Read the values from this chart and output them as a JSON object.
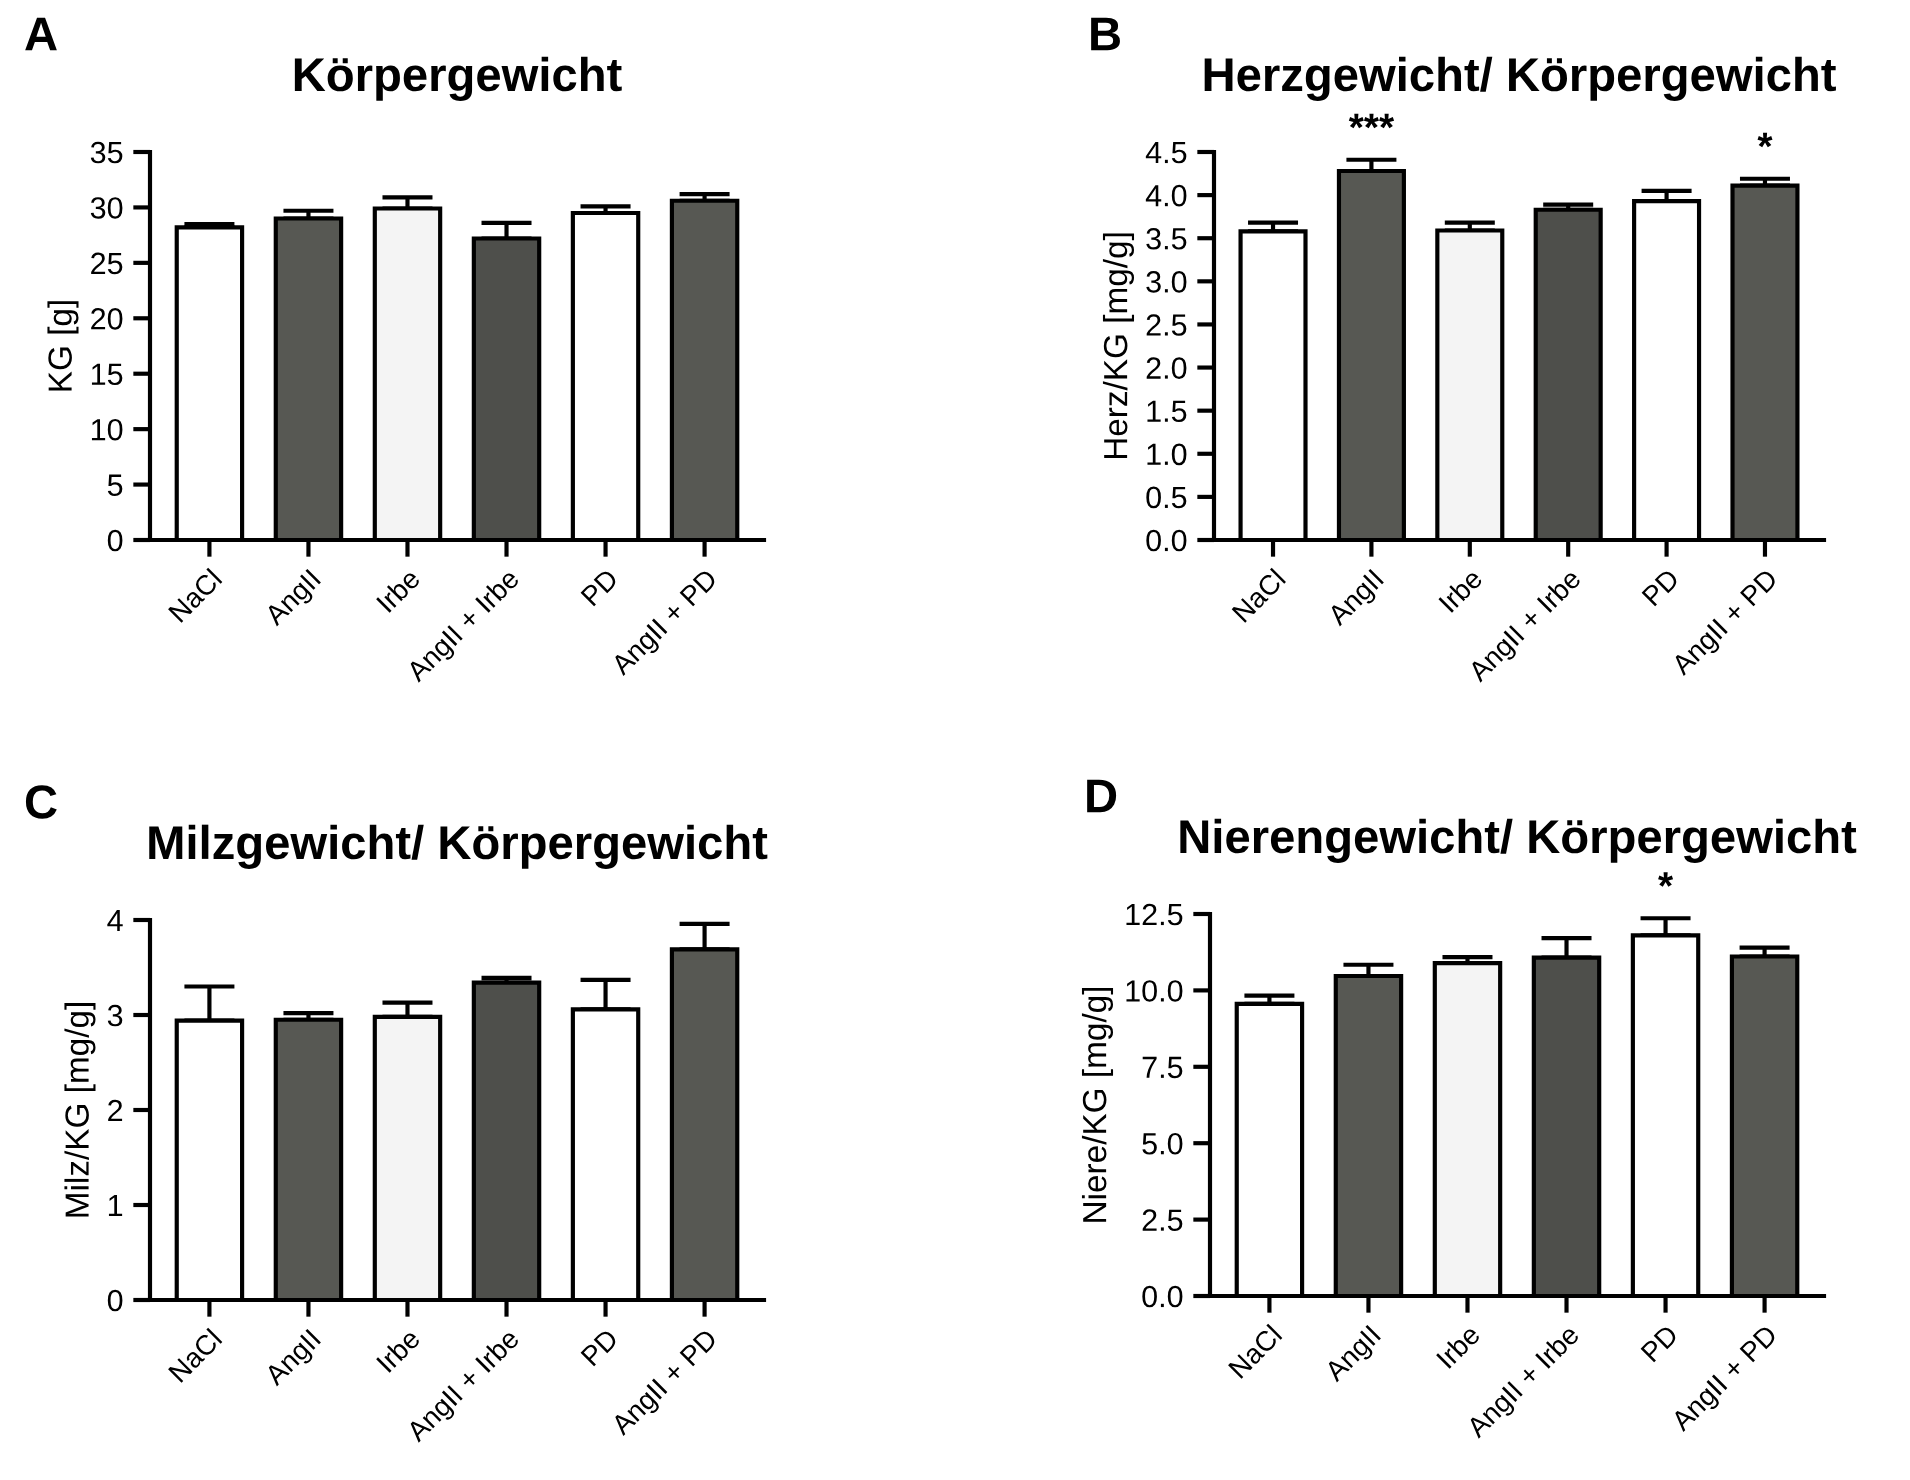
{
  "chart_data": [
    {
      "type": "bar",
      "title": "Körpergewicht",
      "ylabel": "KG [g]",
      "categories": [
        "NaCl",
        "AngII",
        "Irbe",
        "AngII + Irbe",
        "PD",
        "AngII + PD"
      ],
      "values": [
        28.2,
        29.0,
        29.9,
        27.2,
        29.5,
        30.6
      ],
      "colors": [
        "#ffffff",
        "#575853",
        "#f4f4f4",
        "#4e4f4b",
        "#ffffff",
        "#575853"
      ],
      "errors": [
        [
          28.2,
          28.5
        ],
        [
          29.0,
          29.7
        ],
        [
          29.9,
          30.9
        ],
        [
          27.2,
          28.6
        ],
        [
          29.5,
          30.1
        ],
        [
          30.6,
          31.2
        ]
      ],
      "ylim": [
        0,
        35
      ],
      "yticks": [
        0,
        5,
        10,
        15,
        20,
        25,
        30,
        35
      ],
      "grid": false,
      "legend": false,
      "annotations": [
        "A"
      ]
    },
    {
      "type": "bar",
      "title": "Herzgewicht/ Körpergewicht",
      "ylabel": "Herz/KG [mg/g]",
      "categories": [
        "NaCl",
        "AngII",
        "Irbe",
        "AngII + Irbe",
        "PD",
        "AngII + PD"
      ],
      "values": [
        3.58,
        4.28,
        3.59,
        3.83,
        3.93,
        4.11
      ],
      "colors": [
        "#ffffff",
        "#575853",
        "#f4f4f4",
        "#4e4f4b",
        "#ffffff",
        "#575853"
      ],
      "errors": [
        [
          3.58,
          3.68
        ],
        [
          4.28,
          4.41
        ],
        [
          3.59,
          3.68
        ],
        [
          3.83,
          3.89
        ],
        [
          3.93,
          4.05
        ],
        [
          4.11,
          4.19
        ]
      ],
      "ylim": [
        0,
        4.5
      ],
      "yticks": [
        {
          "value": 0,
          "label": "0.0"
        },
        0.5,
        {
          "value": 1,
          "label": "1.0"
        },
        1.5,
        {
          "value": 2,
          "label": "2.0"
        },
        2.5,
        {
          "value": 3,
          "label": "3.0"
        },
        3.5,
        {
          "value": 4,
          "label": "4.0"
        },
        4.5
      ],
      "grid": false,
      "legend": false,
      "annotations": [
        "B",
        {
          "text": "***",
          "x": "AngII",
          "y": 4.41
        },
        {
          "text": "*",
          "x": "AngII + PD",
          "y": 4.19
        }
      ]
    },
    {
      "type": "bar",
      "title": "Milzgewicht/ Körpergewicht",
      "ylabel": "Milz/KG [mg/g]",
      "categories": [
        "NaCl",
        "AngII",
        "Irbe",
        "AngII + Irbe",
        "PD",
        "AngII + PD"
      ],
      "values": [
        2.94,
        2.95,
        2.98,
        3.34,
        3.06,
        3.69
      ],
      "colors": [
        "#ffffff",
        "#575853",
        "#f4f4f4",
        "#4e4f4b",
        "#ffffff",
        "#575853"
      ],
      "errors": [
        [
          2.94,
          3.3
        ],
        [
          2.95,
          3.02
        ],
        [
          2.98,
          3.13
        ],
        [
          3.34,
          3.39
        ],
        [
          3.06,
          3.37
        ],
        [
          3.69,
          3.96
        ]
      ],
      "ylim": [
        0,
        4
      ],
      "yticks": [
        0,
        1,
        2,
        3,
        4
      ],
      "grid": false,
      "legend": false,
      "annotations": [
        "C"
      ]
    },
    {
      "type": "bar",
      "title": "Nierengewicht/ Körpergewicht",
      "ylabel": "Niere/KG [mg/g]",
      "categories": [
        "NaCl",
        "AngII",
        "Irbe",
        "AngII + Irbe",
        "PD",
        "AngII + PD"
      ],
      "values": [
        9.56,
        10.47,
        10.89,
        11.07,
        11.8,
        11.11
      ],
      "colors": [
        "#ffffff",
        "#575853",
        "#f4f4f4",
        "#4e4f4b",
        "#ffffff",
        "#575853"
      ],
      "errors": [
        [
          9.56,
          9.83
        ],
        [
          10.47,
          10.84
        ],
        [
          10.89,
          11.09
        ],
        [
          11.07,
          11.71
        ],
        [
          11.8,
          12.36
        ],
        [
          11.11,
          11.4
        ]
      ],
      "ylim": [
        0,
        12.5
      ],
      "yticks": [
        {
          "value": 0,
          "label": "0.0"
        },
        2.5,
        {
          "value": 5,
          "label": "5.0"
        },
        7.5,
        {
          "value": 10,
          "label": "10.0"
        },
        12.5
      ],
      "grid": false,
      "legend": false,
      "annotations": [
        "D",
        {
          "text": "*",
          "x": "PD",
          "y": 12.36
        }
      ]
    }
  ]
}
